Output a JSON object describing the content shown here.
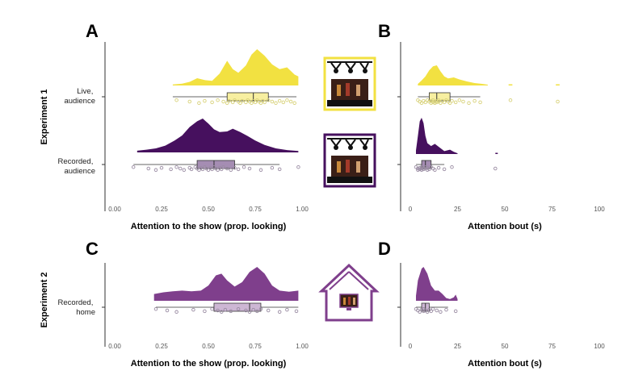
{
  "figure": {
    "experiments": [
      "Experiment 1",
      "Experiment 2"
    ],
    "groups": {
      "live_audience": [
        "Live,",
        "audience"
      ],
      "recorded_audience": [
        "Recorded,",
        "audience"
      ],
      "recorded_home": [
        "Recorded,",
        "home"
      ]
    },
    "colors": {
      "live": "#F2E141",
      "recorded_audience": "#46105E",
      "recorded_home": "#7F3F8C",
      "box_live": "#F7EFA0",
      "box_rec_aud": "#A58DB3",
      "box_rec_home": "#CDB7D4",
      "points_live": "#D8D27A",
      "points_rec": "#9A8CA3"
    },
    "icons": [
      "stage-icon",
      "stage-icon",
      "house-icon"
    ]
  },
  "chart_data": [
    {
      "panel": "A",
      "type": "raincloud",
      "xlabel": "Attention to the show (prop. looking)",
      "xlim": [
        0,
        1
      ],
      "ticks": [
        0,
        0.25,
        0.5,
        0.75,
        1.0
      ],
      "tick_labels": [
        "0.00",
        "0.25",
        "0.50",
        "0.75",
        "1.00"
      ],
      "series": [
        {
          "group": "live_audience",
          "color_key": "live",
          "box_key": "box_live",
          "pts_key": "points_live",
          "density": [
            [
              0.31,
              0.03
            ],
            [
              0.36,
              0.05
            ],
            [
              0.4,
              0.1
            ],
            [
              0.44,
              0.2
            ],
            [
              0.48,
              0.15
            ],
            [
              0.52,
              0.13
            ],
            [
              0.56,
              0.33
            ],
            [
              0.6,
              0.68
            ],
            [
              0.63,
              0.45
            ],
            [
              0.66,
              0.35
            ],
            [
              0.7,
              0.55
            ],
            [
              0.73,
              0.85
            ],
            [
              0.76,
              1.0
            ],
            [
              0.8,
              0.82
            ],
            [
              0.84,
              0.58
            ],
            [
              0.88,
              0.45
            ],
            [
              0.92,
              0.5
            ],
            [
              0.96,
              0.3
            ],
            [
              0.98,
              0.25
            ]
          ],
          "box": {
            "min": 0.31,
            "q1": 0.6,
            "median": 0.74,
            "q3": 0.82,
            "max": 0.97
          },
          "points": [
            0.33,
            0.4,
            0.45,
            0.48,
            0.52,
            0.55,
            0.58,
            0.6,
            0.61,
            0.63,
            0.64,
            0.66,
            0.67,
            0.68,
            0.7,
            0.71,
            0.72,
            0.73,
            0.74,
            0.75,
            0.76,
            0.77,
            0.78,
            0.79,
            0.8,
            0.82,
            0.84,
            0.86,
            0.88,
            0.9,
            0.92,
            0.94,
            0.96
          ]
        },
        {
          "group": "recorded_audience",
          "color_key": "recorded_audience",
          "box_key": "box_rec_aud",
          "pts_key": "points_rec",
          "density": [
            [
              0.12,
              0.05
            ],
            [
              0.17,
              0.08
            ],
            [
              0.22,
              0.12
            ],
            [
              0.27,
              0.2
            ],
            [
              0.32,
              0.35
            ],
            [
              0.36,
              0.5
            ],
            [
              0.4,
              0.75
            ],
            [
              0.44,
              0.92
            ],
            [
              0.47,
              1.0
            ],
            [
              0.5,
              0.85
            ],
            [
              0.53,
              0.68
            ],
            [
              0.56,
              0.6
            ],
            [
              0.6,
              0.62
            ],
            [
              0.63,
              0.7
            ],
            [
              0.67,
              0.6
            ],
            [
              0.71,
              0.48
            ],
            [
              0.75,
              0.35
            ],
            [
              0.8,
              0.22
            ],
            [
              0.86,
              0.12
            ],
            [
              0.92,
              0.07
            ],
            [
              0.98,
              0.04
            ]
          ],
          "box": {
            "min": 0.1,
            "q1": 0.44,
            "median": 0.53,
            "q3": 0.64,
            "max": 0.88
          },
          "points": [
            0.1,
            0.18,
            0.22,
            0.25,
            0.3,
            0.33,
            0.35,
            0.37,
            0.4,
            0.41,
            0.43,
            0.44,
            0.45,
            0.46,
            0.47,
            0.48,
            0.49,
            0.5,
            0.51,
            0.52,
            0.53,
            0.54,
            0.55,
            0.56,
            0.57,
            0.58,
            0.6,
            0.62,
            0.64,
            0.66,
            0.69,
            0.72,
            0.78,
            0.84,
            0.88,
            0.98
          ]
        }
      ]
    },
    {
      "panel": "B",
      "type": "raincloud",
      "xlabel": "Attention bout (s)",
      "xlim": [
        0,
        100
      ],
      "ticks": [
        0,
        25,
        50,
        75,
        100
      ],
      "tick_labels": [
        "0",
        "25",
        "50",
        "75",
        "100"
      ],
      "series": [
        {
          "group": "live_audience",
          "color_key": "live",
          "box_key": "box_live",
          "pts_key": "points_live",
          "density": [
            [
              4,
              0.08
            ],
            [
              6,
              0.25
            ],
            [
              8,
              0.45
            ],
            [
              10,
              0.75
            ],
            [
              12,
              0.95
            ],
            [
              14,
              1.0
            ],
            [
              16,
              0.7
            ],
            [
              18,
              0.45
            ],
            [
              20,
              0.35
            ],
            [
              23,
              0.4
            ],
            [
              26,
              0.3
            ],
            [
              30,
              0.2
            ],
            [
              34,
              0.12
            ],
            [
              38,
              0.08
            ],
            [
              41,
              0.04
            ]
          ],
          "tail": [
            [
              52,
              0.02
            ],
            [
              54,
              0.02
            ],
            [
              77,
              0.02
            ],
            [
              79,
              0.02
            ]
          ],
          "box": {
            "min": 4,
            "q1": 10,
            "median": 14,
            "q3": 21,
            "max": 37
          },
          "points": [
            4,
            5,
            6,
            7,
            8,
            9,
            10,
            11,
            11,
            12,
            12,
            13,
            13,
            14,
            14,
            15,
            15,
            16,
            17,
            18,
            19,
            20,
            21,
            22,
            24,
            26,
            28,
            31,
            34,
            37,
            53,
            78
          ]
        },
        {
          "group": "recorded_audience",
          "color_key": "recorded_audience",
          "box_key": "box_rec_aud",
          "pts_key": "points_rec",
          "density": [
            [
              3,
              0.1
            ],
            [
              4,
              0.5
            ],
            [
              5,
              0.9
            ],
            [
              6,
              1.0
            ],
            [
              7,
              0.85
            ],
            [
              8,
              0.5
            ],
            [
              9,
              0.3
            ],
            [
              11,
              0.22
            ],
            [
              13,
              0.28
            ],
            [
              15,
              0.2
            ],
            [
              18,
              0.08
            ],
            [
              21,
              0.12
            ],
            [
              23,
              0.06
            ],
            [
              25,
              0.02
            ]
          ],
          "tail": [
            [
              45,
              0.02
            ],
            [
              46,
              0.02
            ]
          ],
          "box": {
            "min": 3,
            "q1": 6,
            "median": 8,
            "q3": 11,
            "max": 18
          },
          "points": [
            3,
            4,
            4,
            5,
            5,
            6,
            6,
            6,
            7,
            7,
            8,
            8,
            9,
            9,
            10,
            11,
            12,
            13,
            15,
            18,
            22,
            45
          ]
        }
      ]
    },
    {
      "panel": "C",
      "type": "raincloud",
      "xlabel": "Attention to the show (prop. looking)",
      "xlim": [
        0,
        1
      ],
      "ticks": [
        0,
        0.25,
        0.5,
        0.75,
        1.0
      ],
      "tick_labels": [
        "0.00",
        "0.25",
        "0.50",
        "0.75",
        "1.00"
      ],
      "series": [
        {
          "group": "recorded_home",
          "color_key": "recorded_home",
          "box_key": "box_rec_home",
          "pts_key": "points_rec",
          "density": [
            [
              0.21,
              0.2
            ],
            [
              0.26,
              0.25
            ],
            [
              0.31,
              0.28
            ],
            [
              0.36,
              0.3
            ],
            [
              0.41,
              0.28
            ],
            [
              0.46,
              0.3
            ],
            [
              0.5,
              0.45
            ],
            [
              0.54,
              0.75
            ],
            [
              0.57,
              0.8
            ],
            [
              0.6,
              0.6
            ],
            [
              0.64,
              0.42
            ],
            [
              0.68,
              0.55
            ],
            [
              0.72,
              0.85
            ],
            [
              0.76,
              1.0
            ],
            [
              0.8,
              0.8
            ],
            [
              0.84,
              0.45
            ],
            [
              0.88,
              0.3
            ],
            [
              0.93,
              0.27
            ],
            [
              0.98,
              0.3
            ]
          ],
          "box": {
            "min": 0.22,
            "q1": 0.53,
            "median": 0.72,
            "q3": 0.78,
            "max": 0.98
          },
          "points": [
            0.22,
            0.28,
            0.33,
            0.42,
            0.48,
            0.52,
            0.55,
            0.57,
            0.59,
            0.62,
            0.66,
            0.7,
            0.72,
            0.74,
            0.76,
            0.78,
            0.82,
            0.88,
            0.92,
            0.97
          ]
        }
      ]
    },
    {
      "panel": "D",
      "type": "raincloud",
      "xlabel": "Attention bout (s)",
      "xlim": [
        0,
        100
      ],
      "ticks": [
        0,
        25,
        50,
        75,
        100
      ],
      "tick_labels": [
        "0",
        "25",
        "50",
        "75",
        "100"
      ],
      "series": [
        {
          "group": "recorded_home",
          "color_key": "recorded_home",
          "box_key": "box_rec_home",
          "pts_key": "points_rec",
          "density": [
            [
              3,
              0.15
            ],
            [
              4,
              0.6
            ],
            [
              6,
              0.95
            ],
            [
              7,
              1.0
            ],
            [
              9,
              0.8
            ],
            [
              11,
              0.45
            ],
            [
              13,
              0.3
            ],
            [
              15,
              0.3
            ],
            [
              17,
              0.2
            ],
            [
              19,
              0.08
            ],
            [
              21,
              0.05
            ],
            [
              23,
              0.1
            ],
            [
              24,
              0.18
            ],
            [
              25,
              0.05
            ]
          ],
          "box": {
            "min": 3,
            "q1": 6,
            "median": 8,
            "q3": 10,
            "max": 20
          },
          "points": [
            3,
            4,
            5,
            6,
            7,
            7,
            8,
            9,
            10,
            11,
            12,
            14,
            16,
            19,
            24
          ]
        }
      ]
    }
  ]
}
